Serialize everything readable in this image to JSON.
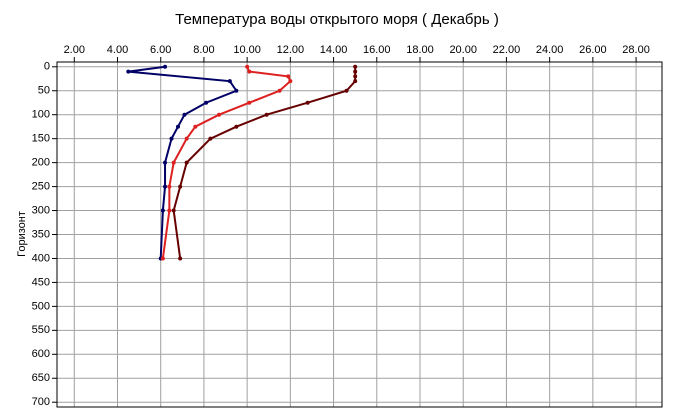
{
  "chart_data": {
    "type": "line",
    "title": "Температура воды открытого моря     ( Декабрь )",
    "y_label": "Горизонт",
    "xlim": [
      1.2,
      29.2
    ],
    "ylim": [
      -10,
      710
    ],
    "y_reversed": true,
    "x_axis_position": "top",
    "grid": true,
    "xticks": [
      {
        "value": 2,
        "label": "2.00"
      },
      {
        "value": 4,
        "label": "4.00"
      },
      {
        "value": 6,
        "label": "6.00"
      },
      {
        "value": 8,
        "label": "8.00"
      },
      {
        "value": 10,
        "label": "10.00"
      },
      {
        "value": 12,
        "label": "12.00"
      },
      {
        "value": 14,
        "label": "14.00"
      },
      {
        "value": 16,
        "label": "16.00"
      },
      {
        "value": 18,
        "label": "18.00"
      },
      {
        "value": 20,
        "label": "20.00"
      },
      {
        "value": 22,
        "label": "22.00"
      },
      {
        "value": 24,
        "label": "24.00"
      },
      {
        "value": 26,
        "label": "26.00"
      },
      {
        "value": 28,
        "label": "28.00"
      }
    ],
    "yticks": [
      0,
      50,
      100,
      150,
      200,
      250,
      300,
      350,
      400,
      450,
      500,
      550,
      600,
      650,
      700
    ],
    "series": [
      {
        "color": "#000066",
        "depths": [
          0,
          10,
          30,
          50,
          75,
          100,
          125,
          150,
          200,
          250,
          300,
          400
        ],
        "values": [
          6.2,
          4.5,
          9.2,
          9.5,
          8.1,
          7.1,
          6.8,
          6.5,
          6.2,
          6.2,
          6.1,
          6.0
        ]
      },
      {
        "color": "#dd2020",
        "depths": [
          0,
          10,
          20,
          30,
          50,
          75,
          100,
          125,
          150,
          200,
          250,
          300,
          400
        ],
        "values": [
          10.0,
          10.1,
          11.9,
          12.0,
          11.5,
          10.1,
          8.7,
          7.6,
          7.2,
          6.6,
          6.4,
          6.4,
          6.1
        ]
      },
      {
        "color": "#660000",
        "depths": [
          0,
          10,
          20,
          30,
          50,
          75,
          100,
          125,
          150,
          200,
          250,
          300,
          400
        ],
        "values": [
          15.0,
          15.0,
          15.0,
          15.0,
          14.6,
          12.8,
          10.9,
          9.5,
          8.3,
          7.2,
          6.9,
          6.6,
          6.9
        ]
      }
    ]
  }
}
